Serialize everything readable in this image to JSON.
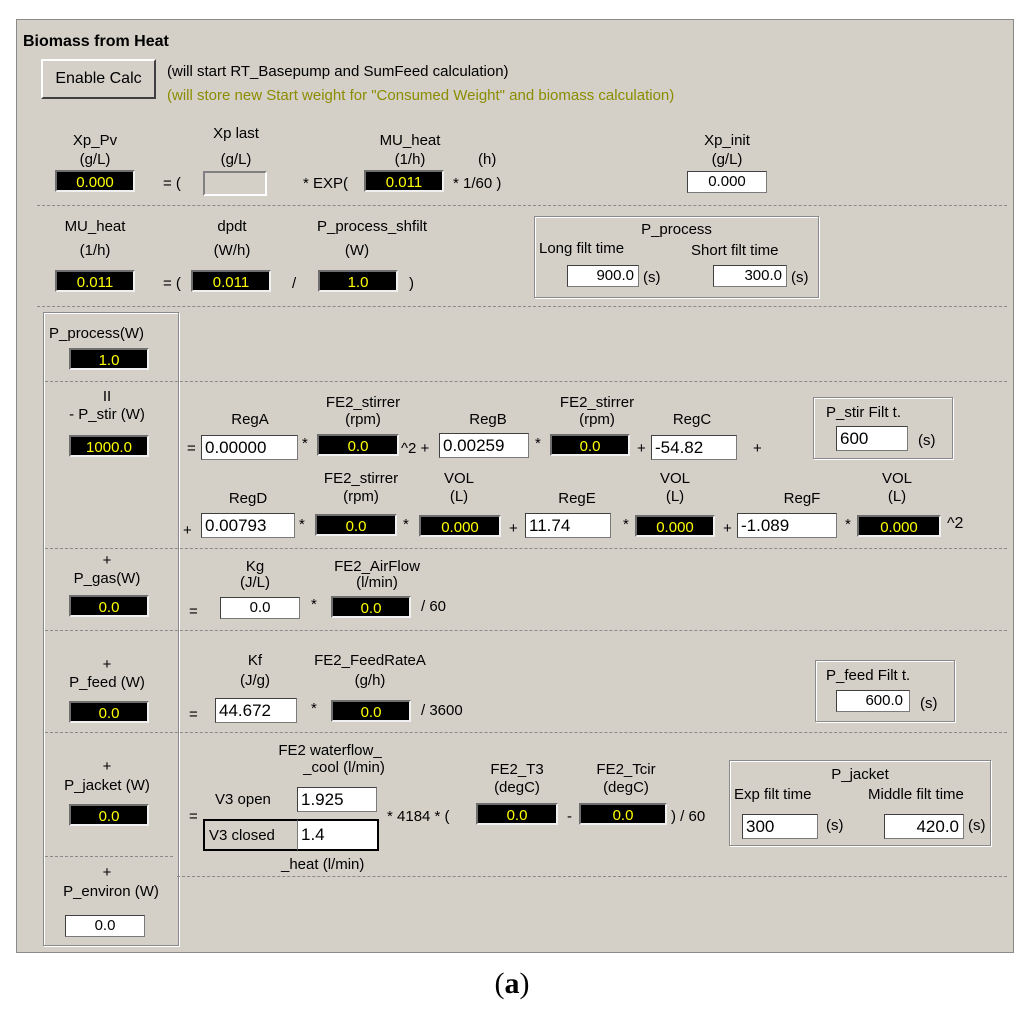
{
  "title": "Biomass from Heat",
  "enable_calc": {
    "label": "Enable Calc",
    "note1": "(will start RT_Basepump and SumFeed calculation)",
    "note2": "(will store new Start weight for \"Consumed Weight\" and biomass calculation)"
  },
  "xp_row": {
    "xp_pv_label": "Xp_Pv",
    "xp_pv_unit": "(g/L)",
    "xp_pv_value": "0.000",
    "eq_open": "= (",
    "xp_last_label": "Xp last",
    "xp_last_unit": "(g/L)",
    "xp_last_value": "",
    "mu_heat_label": "MU_heat",
    "mu_heat_unit": "(1/h)",
    "h_unit": "(h)",
    "exp_text": "* EXP(",
    "mu_heat_value": "0.011",
    "times_text": "* 1/60  )",
    "xp_init_label": "Xp_init",
    "xp_init_unit": "(g/L)",
    "xp_init_value": "0.000"
  },
  "mu_row": {
    "mu_label": "MU_heat",
    "mu_unit": "(1/h)",
    "mu_value": "0.011",
    "eq_open": "= (",
    "dpdt_label": "dpdt",
    "dpdt_unit": "(W/h)",
    "dpdt_value": "0.011",
    "div": "/",
    "pps_label": "P_process_shfilt",
    "pps_unit": "(W)",
    "pps_value": "1.0",
    "close": ")",
    "pprocess_group": {
      "title": "P_process",
      "long_label": "Long filt time",
      "long_value": "900.0",
      "long_unit": "(s)",
      "short_label": "Short filt time",
      "short_value": "300.0",
      "short_unit": "(s)"
    }
  },
  "p_process": {
    "label": "P_process(W)",
    "value": "1.0"
  },
  "p_stir": {
    "eq_sign": "II",
    "label": "- P_stir (W)",
    "value": "1000.0",
    "row1": {
      "eq": "=",
      "rega_label": "RegA",
      "rega_value": "0.00000",
      "times1": "*",
      "fe2_label": "FE2_stirrer",
      "fe2_unit": "(rpm)",
      "fe2_value": "0.0",
      "sq_plus": "^2 +",
      "regb_label": "RegB",
      "regb_value": "0.00259",
      "times2": "*",
      "fe2b_label": "FE2_stirrer",
      "fe2b_unit": "(rpm)",
      "fe2b_value": "0.0",
      "plus1": "+",
      "regc_label": "RegC",
      "regc_value": "-54.82",
      "plus2": "+"
    },
    "filt": {
      "label": "P_stir Filt t.",
      "value": "600",
      "unit": "(s)"
    },
    "row2": {
      "plus0": "+",
      "regd_label": "RegD",
      "regd_value": "0.00793",
      "times1": "*",
      "fe2_label": "FE2_stirrer",
      "fe2_unit": "(rpm)",
      "fe2_value": "0.0",
      "times2": "*",
      "vol1_label": "VOL",
      "vol1_unit": "(L)",
      "vol1_value": "0.000",
      "plus1": "+",
      "rege_label": "RegE",
      "rege_value": "11.74",
      "times3": "*",
      "vol2_label": "VOL",
      "vol2_unit": "(L)",
      "vol2_value": "0.000",
      "plus2": "+",
      "regf_label": "RegF",
      "regf_value": "-1.089",
      "times4": "*",
      "vol3_label": "VOL",
      "vol3_unit": "(L)",
      "vol3_value": "0.000",
      "sq": "^2"
    }
  },
  "p_gas": {
    "plus": "+",
    "label": "P_gas(W)",
    "value": "0.0",
    "eq": "=",
    "kg_label": "Kg",
    "kg_unit": "(J/L)",
    "kg_value": "0.0",
    "times": "*",
    "air_label": "FE2_AirFlow",
    "air_unit": "(l/min)",
    "air_value": "0.0",
    "div": "/ 60"
  },
  "p_feed": {
    "plus": "+",
    "label": "P_feed (W)",
    "value": "0.0",
    "eq": "=",
    "kf_label": "Kf",
    "kf_unit": "(J/g)",
    "kf_value": "44.672",
    "times": "*",
    "rate_label": "FE2_FeedRateA",
    "rate_unit": "(g/h)",
    "rate_value": "0.0",
    "div": "/ 3600",
    "filt": {
      "label": "P_feed Filt t.",
      "value": "600.0",
      "unit": "(s)"
    }
  },
  "p_jacket": {
    "plus": "+",
    "label": "P_jacket (W)",
    "value": "0.0",
    "eq": "=",
    "water_label1": "FE2 waterflow_",
    "water_label2": "_cool (l/min)",
    "v3_open_label": "V3 open",
    "v3_open_value": "1.925",
    "v3_closed_label": "V3 closed",
    "v3_closed_value": "1.4",
    "heat_label": "_heat (l/min)",
    "times": "* 4184 * (",
    "t3_label": "FE2_T3",
    "t3_unit": "(degC)",
    "t3_value": "0.0",
    "minus": "-",
    "tcir_label": "FE2_Tcir",
    "tcir_unit": "(degC)",
    "tcir_value": "0.0",
    "div": ") / 60",
    "group": {
      "title": "P_jacket",
      "exp_label": "Exp filt time",
      "exp_value": "300",
      "exp_unit": "(s)",
      "mid_label": "Middle filt time",
      "mid_value": "420.0",
      "mid_unit": "(s)"
    }
  },
  "p_environ": {
    "plus": "+",
    "label": "P_environ (W)",
    "value": "0.0"
  },
  "caption_open": "(",
  "caption_letter": "a",
  "caption_close": ")"
}
